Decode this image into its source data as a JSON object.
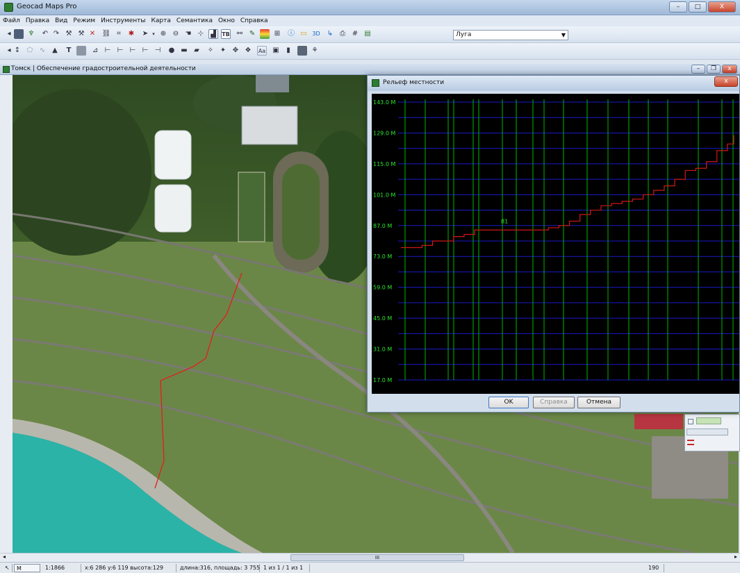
{
  "window": {
    "title": "Geocad Maps Pro",
    "minimize": "–",
    "maximize": "□",
    "close": "X"
  },
  "menu": [
    "Файл",
    "Правка",
    "Вид",
    "Режим",
    "Инструменты",
    "Карта",
    "Семантика",
    "Окно",
    "Справка"
  ],
  "toolbar": {
    "layer_combo_value": "Луга",
    "threed_label": "3D",
    "text_tool_label": "T",
    "font_tool_label": "Aa"
  },
  "map_window": {
    "title": "Томск | Обеспечение градостроительной деятельности"
  },
  "dialog": {
    "title": "Рельеф местности",
    "close": "x",
    "ok_label": "OK",
    "help_label": "Справка",
    "cancel_label": "Отмена"
  },
  "chart_data": {
    "type": "line",
    "title": "",
    "xlabel": "",
    "ylabel": "",
    "ylim": [
      17,
      143
    ],
    "y_ticks": [
      "143.0 M",
      "129.0 M",
      "115.0 M",
      "101.0 M",
      "87.0 M",
      "73.0 M",
      "59.0 M",
      "45.0 M",
      "31.0 M",
      "17.0 M"
    ],
    "x": [
      0,
      10,
      20,
      30,
      40,
      50,
      60,
      70,
      80,
      90,
      100,
      110,
      120,
      130,
      140,
      150,
      160,
      170,
      180,
      190,
      200,
      210,
      220,
      230,
      240,
      250,
      260,
      270,
      280,
      290,
      300,
      310,
      316
    ],
    "y": [
      77,
      77,
      78,
      80,
      80,
      82,
      83,
      85,
      85,
      85,
      85,
      85,
      85,
      85,
      86,
      87,
      89,
      92,
      94,
      96,
      97,
      98,
      99,
      101,
      103,
      105,
      108,
      112,
      113,
      116,
      121,
      124,
      128
    ],
    "annotation": "81",
    "colors": {
      "background": "#000000",
      "line": "#d01818",
      "grid_h": "#1a1ac8",
      "grid_v": "#00b800",
      "labels": "#2ce82c"
    }
  },
  "statusbar": {
    "mode": "M",
    "scale": "1:1866",
    "coords": "x:6 286 y:6 119 высота:129",
    "measure": "длина:316, площадь: 3 755",
    "pages": "1 из 1 / 1 из 1",
    "right_value": "190"
  },
  "map_scroll": {
    "thumb_label": "III"
  }
}
